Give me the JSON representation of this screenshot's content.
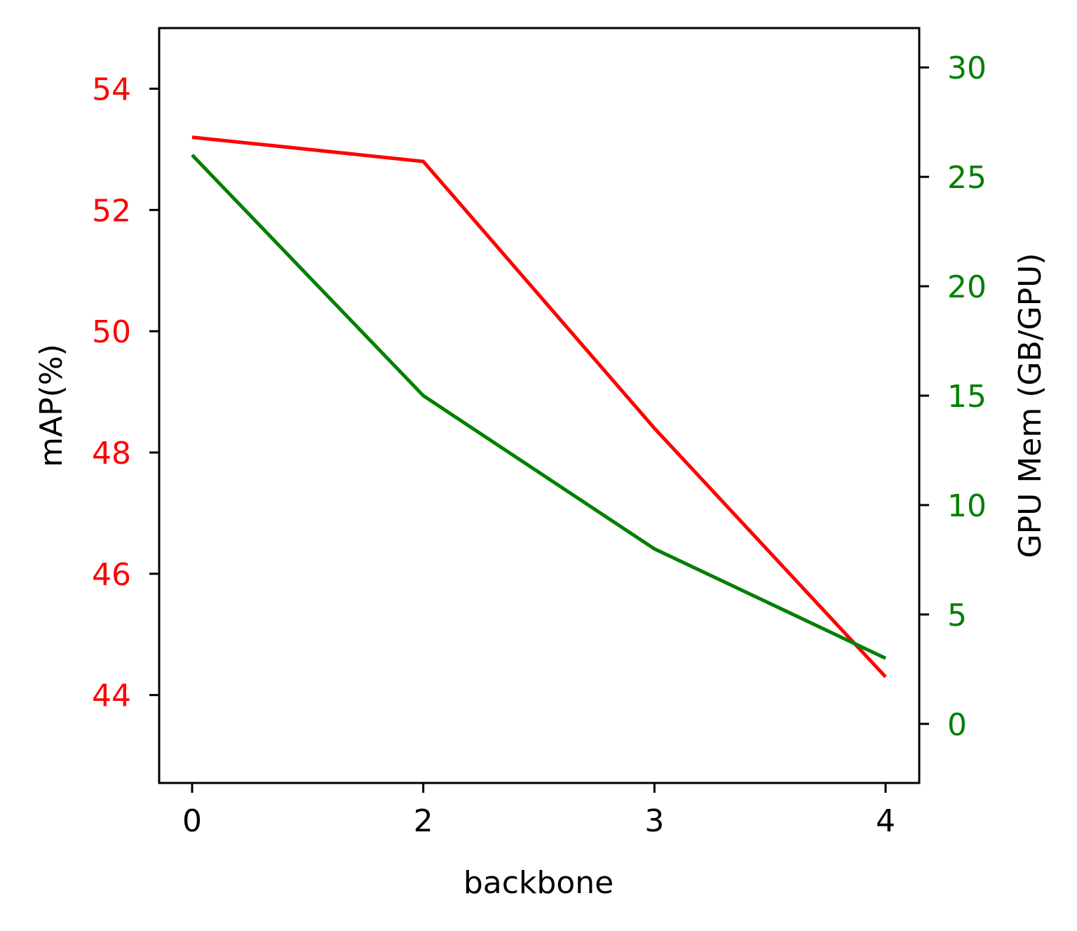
{
  "chart_data": {
    "type": "line",
    "title": "",
    "xlabel": "backbone",
    "ylabel": "mAP(%)",
    "y2label": "GPU Mem (GB/GPU)",
    "categories": [
      "0",
      "2",
      "3",
      "4"
    ],
    "ylim": [
      42.55,
      55.0
    ],
    "y2lim": [
      -2.7,
      31.8
    ],
    "yticks": [
      "44",
      "46",
      "48",
      "50",
      "52",
      "54"
    ],
    "y2ticks": [
      "0",
      "5",
      "10",
      "15",
      "20",
      "25",
      "30"
    ],
    "grid": false,
    "series": [
      {
        "axis": "left",
        "color": "#ff0000",
        "values": [
          53.2,
          52.8,
          48.4,
          44.3
        ]
      },
      {
        "axis": "right",
        "color": "#008000",
        "values": [
          26.0,
          15.0,
          8.0,
          3.0
        ]
      }
    ],
    "colors": {
      "left_axis_ticks": "#ff0000",
      "right_axis_ticks": "#008000",
      "axis": "#000000"
    }
  }
}
